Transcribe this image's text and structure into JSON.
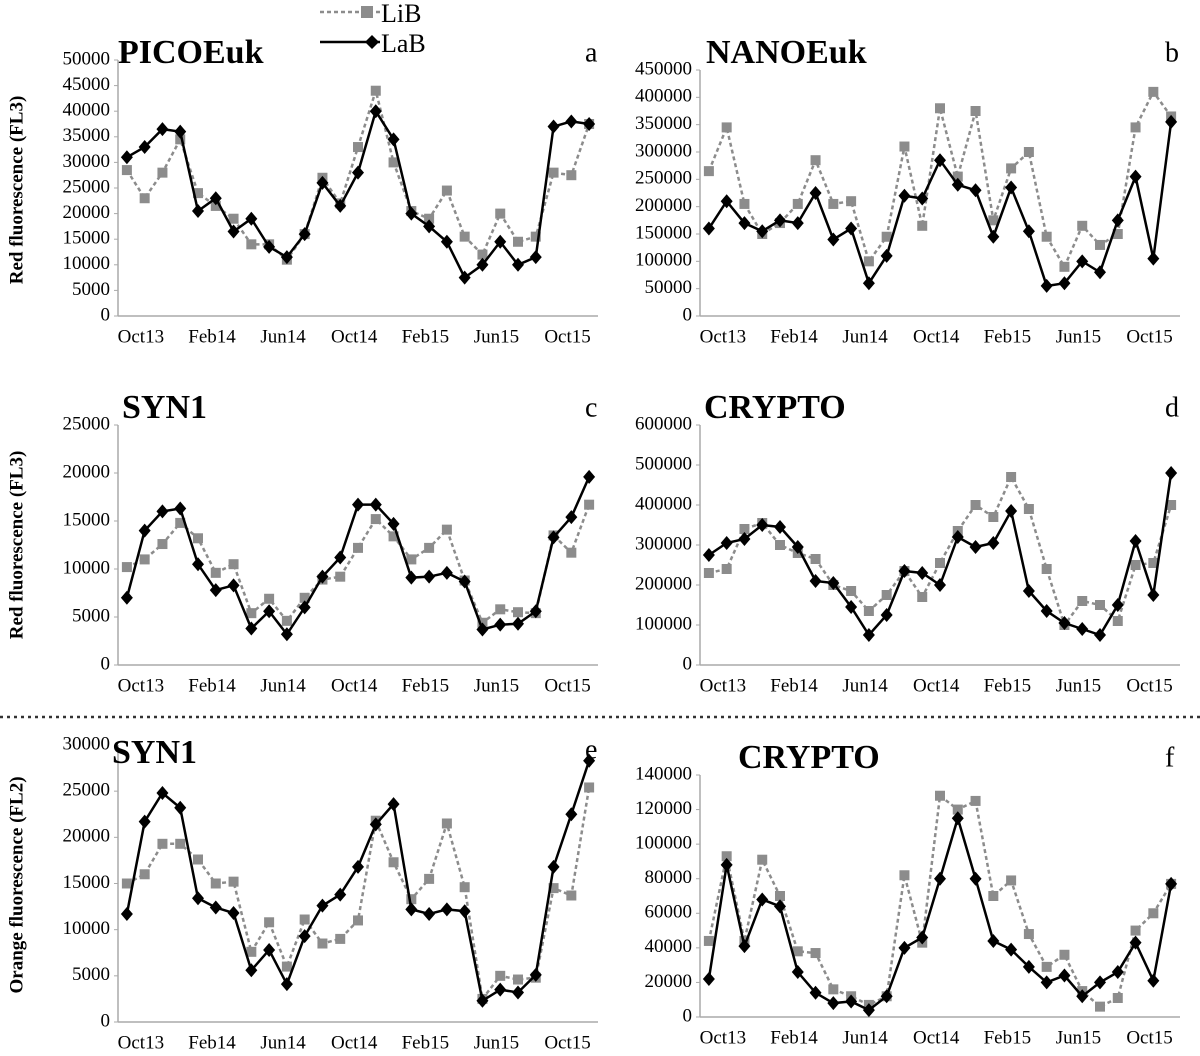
{
  "chart_data": [
    {
      "type": "line",
      "title": "PICOEuk",
      "panel_label": "a",
      "y_label": "Red fluorescence (FL3)",
      "categories": [
        "Oct13",
        null,
        null,
        null,
        "Feb14",
        null,
        null,
        null,
        "Jun14",
        null,
        null,
        null,
        "Oct14",
        null,
        null,
        null,
        "Feb15",
        null,
        null,
        null,
        "Jun15",
        null,
        null,
        null,
        "Oct15",
        null,
        null
      ],
      "ylim": [
        0,
        50000
      ],
      "yticks": [
        0,
        5000,
        10000,
        15000,
        20000,
        25000,
        30000,
        35000,
        40000,
        45000,
        50000
      ],
      "grid": false,
      "series": [
        {
          "name": "LiB",
          "color": "#8c8c8c",
          "line_style": "dotted",
          "marker": "square",
          "values": [
            28500,
            23000,
            28000,
            34500,
            24000,
            21500,
            19000,
            14000,
            14000,
            11000,
            16000,
            27000,
            22000,
            33000,
            44000,
            30000,
            20500,
            19000,
            24500,
            15500,
            12000,
            20000,
            14500,
            15500,
            28000,
            27500,
            37500
          ]
        },
        {
          "name": "LaB",
          "color": "#000000",
          "line_style": "solid",
          "marker": "diamond",
          "values": [
            31000,
            33000,
            36500,
            36000,
            20500,
            23000,
            16500,
            19000,
            13500,
            11500,
            16000,
            26000,
            21500,
            28000,
            40000,
            34500,
            20000,
            17500,
            14500,
            7500,
            10000,
            14500,
            10000,
            11500,
            37000,
            38000,
            37500
          ]
        }
      ]
    },
    {
      "type": "line",
      "title": "NANOEuk",
      "panel_label": "b",
      "categories": [
        "Oct13",
        null,
        null,
        null,
        "Feb14",
        null,
        null,
        null,
        "Jun14",
        null,
        null,
        null,
        "Oct14",
        null,
        null,
        null,
        "Feb15",
        null,
        null,
        null,
        "Jun15",
        null,
        null,
        null,
        "Oct15",
        null,
        null
      ],
      "ylim": [
        0,
        450000
      ],
      "yticks": [
        0,
        50000,
        100000,
        150000,
        200000,
        250000,
        300000,
        350000,
        400000,
        450000
      ],
      "grid": false,
      "series": [
        {
          "name": "LiB",
          "color": "#8c8c8c",
          "line_style": "dotted",
          "marker": "square",
          "values": [
            265000,
            345000,
            205000,
            150000,
            170000,
            205000,
            285000,
            205000,
            210000,
            100000,
            145000,
            310000,
            165000,
            380000,
            255000,
            375000,
            175000,
            270000,
            300000,
            145000,
            90000,
            165000,
            130000,
            150000,
            345000,
            410000,
            365000
          ]
        },
        {
          "name": "LaB",
          "color": "#000000",
          "line_style": "solid",
          "marker": "diamond",
          "values": [
            160000,
            210000,
            170000,
            155000,
            175000,
            170000,
            225000,
            140000,
            160000,
            60000,
            110000,
            220000,
            215000,
            285000,
            240000,
            230000,
            145000,
            235000,
            155000,
            55000,
            60000,
            100000,
            80000,
            175000,
            255000,
            105000,
            355000
          ]
        }
      ]
    },
    {
      "type": "line",
      "title": "SYN1",
      "panel_label": "c",
      "y_label": "Red fluorescence (FL3)",
      "categories": [
        "Oct13",
        null,
        null,
        null,
        "Feb14",
        null,
        null,
        null,
        "Jun14",
        null,
        null,
        null,
        "Oct14",
        null,
        null,
        null,
        "Feb15",
        null,
        null,
        null,
        "Jun15",
        null,
        null,
        null,
        "Oct15",
        null,
        null
      ],
      "ylim": [
        0,
        25000
      ],
      "yticks": [
        0,
        5000,
        10000,
        15000,
        20000,
        25000
      ],
      "grid": false,
      "series": [
        {
          "name": "LiB",
          "color": "#8c8c8c",
          "line_style": "dotted",
          "marker": "square",
          "values": [
            10200,
            11000,
            12600,
            14800,
            13200,
            9600,
            10500,
            5400,
            6900,
            4600,
            7000,
            8900,
            9200,
            12200,
            15200,
            13400,
            11000,
            12200,
            14100,
            8800,
            4400,
            5800,
            5500,
            5400,
            13500,
            11700,
            16700
          ]
        },
        {
          "name": "LaB",
          "color": "#000000",
          "line_style": "solid",
          "marker": "diamond",
          "values": [
            7000,
            14000,
            16000,
            16300,
            10500,
            7800,
            8300,
            3800,
            5600,
            3200,
            6000,
            9200,
            11200,
            16700,
            16700,
            14700,
            9100,
            9200,
            9600,
            8700,
            3700,
            4200,
            4300,
            5600,
            13300,
            15400,
            19600
          ]
        }
      ]
    },
    {
      "type": "line",
      "title": "CRYPTO",
      "panel_label": "d",
      "categories": [
        "Oct13",
        null,
        null,
        null,
        "Feb14",
        null,
        null,
        null,
        "Jun14",
        null,
        null,
        null,
        "Oct14",
        null,
        null,
        null,
        "Feb15",
        null,
        null,
        null,
        "Jun15",
        null,
        null,
        null,
        "Oct15",
        null,
        null
      ],
      "ylim": [
        0,
        600000
      ],
      "yticks": [
        0,
        100000,
        200000,
        300000,
        400000,
        500000,
        600000
      ],
      "grid": false,
      "series": [
        {
          "name": "LiB",
          "color": "#8c8c8c",
          "line_style": "dotted",
          "marker": "square",
          "values": [
            230000,
            240000,
            340000,
            355000,
            300000,
            280000,
            265000,
            200000,
            185000,
            135000,
            175000,
            235000,
            170000,
            255000,
            335000,
            400000,
            370000,
            470000,
            390000,
            240000,
            100000,
            160000,
            150000,
            110000,
            250000,
            255000,
            400000
          ]
        },
        {
          "name": "LaB",
          "color": "#000000",
          "line_style": "solid",
          "marker": "diamond",
          "values": [
            275000,
            305000,
            315000,
            350000,
            345000,
            295000,
            210000,
            205000,
            145000,
            75000,
            125000,
            235000,
            230000,
            200000,
            320000,
            295000,
            305000,
            385000,
            185000,
            135000,
            105000,
            90000,
            75000,
            150000,
            310000,
            175000,
            480000
          ]
        }
      ]
    },
    {
      "type": "line",
      "title": "SYN1",
      "panel_label": "e",
      "y_label": "Orange fluorescence (FL2)",
      "categories": [
        "Oct13",
        null,
        null,
        null,
        "Feb14",
        null,
        null,
        null,
        "Jun14",
        null,
        null,
        null,
        "Oct14",
        null,
        null,
        null,
        "Feb15",
        null,
        null,
        null,
        "Jun15",
        null,
        null,
        null,
        "Oct15",
        null,
        null
      ],
      "ylim": [
        0,
        30000
      ],
      "yticks": [
        0,
        5000,
        10000,
        15000,
        20000,
        25000,
        30000
      ],
      "grid": false,
      "series": [
        {
          "name": "LiB",
          "color": "#8c8c8c",
          "line_style": "dotted",
          "marker": "square",
          "values": [
            15000,
            16000,
            19300,
            19300,
            17600,
            15000,
            15200,
            7600,
            10800,
            6000,
            11100,
            8500,
            9000,
            11000,
            21800,
            17300,
            13300,
            15500,
            21500,
            14600,
            2500,
            5000,
            4600,
            4800,
            14500,
            13700,
            25400
          ]
        },
        {
          "name": "LaB",
          "color": "#000000",
          "line_style": "solid",
          "marker": "diamond",
          "values": [
            11700,
            21700,
            24800,
            23200,
            13400,
            12400,
            11800,
            5600,
            7800,
            4100,
            9300,
            12600,
            13800,
            16800,
            21400,
            23600,
            12200,
            11700,
            12200,
            12000,
            2300,
            3500,
            3200,
            5100,
            16800,
            22500,
            28300
          ]
        }
      ]
    },
    {
      "type": "line",
      "title": "CRYPTO",
      "panel_label": "f",
      "categories": [
        "Oct13",
        null,
        null,
        null,
        "Feb14",
        null,
        null,
        null,
        "Jun14",
        null,
        null,
        null,
        "Oct14",
        null,
        null,
        null,
        "Feb15",
        null,
        null,
        null,
        "Jun15",
        null,
        null,
        null,
        "Oct15",
        null,
        null
      ],
      "ylim": [
        0,
        140000
      ],
      "yticks": [
        0,
        20000,
        40000,
        60000,
        80000,
        100000,
        120000,
        140000
      ],
      "grid": false,
      "series": [
        {
          "name": "LiB",
          "color": "#8c8c8c",
          "line_style": "dotted",
          "marker": "square",
          "values": [
            44000,
            93000,
            44000,
            91000,
            70000,
            38000,
            37000,
            16000,
            12000,
            7000,
            12000,
            82000,
            43000,
            128000,
            120000,
            125000,
            70000,
            79000,
            48000,
            29000,
            36000,
            15000,
            6000,
            11000,
            50000,
            60000,
            77000
          ]
        },
        {
          "name": "LaB",
          "color": "#000000",
          "line_style": "solid",
          "marker": "diamond",
          "values": [
            22000,
            88000,
            41000,
            68000,
            64000,
            26000,
            14000,
            8000,
            9000,
            4000,
            12000,
            40000,
            46000,
            80000,
            115000,
            80000,
            44000,
            39000,
            29000,
            20000,
            24000,
            12000,
            20000,
            26000,
            43000,
            21000,
            77000
          ]
        }
      ]
    }
  ]
}
